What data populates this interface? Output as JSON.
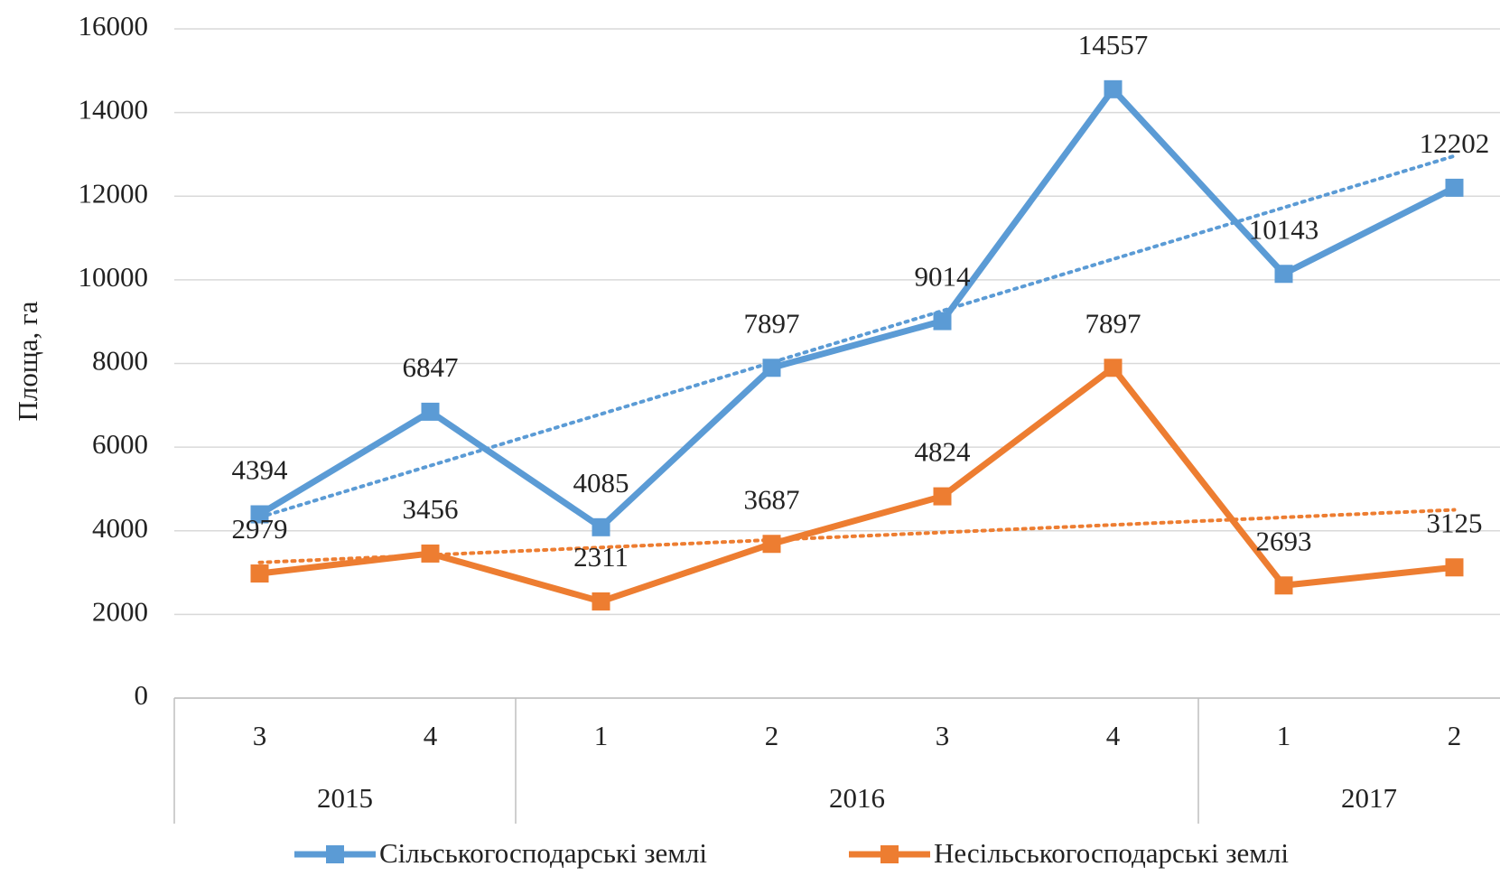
{
  "chart_data": {
    "type": "line",
    "y_label": "Площа, га",
    "categories": [
      "3",
      "4",
      "1",
      "2",
      "3",
      "4",
      "1",
      "2"
    ],
    "category_groups": [
      {
        "label": "2015",
        "count": 2
      },
      {
        "label": "2016",
        "count": 4
      },
      {
        "label": "2017",
        "count": 2
      }
    ],
    "series": [
      {
        "name": "Сільськогосподарські землі",
        "color": "#5b9bd5",
        "values": [
          4394,
          6847,
          4085,
          7897,
          9014,
          14557,
          10143,
          12202
        ],
        "trendline": "linear"
      },
      {
        "name": "Несільськогосподарські землі",
        "color": "#ed7d31",
        "values": [
          2979,
          3456,
          2311,
          3687,
          4824,
          7897,
          2693,
          3125
        ],
        "trendline": "linear"
      }
    ],
    "ylim": [
      0,
      16000
    ],
    "yticks": [
      0,
      2000,
      4000,
      6000,
      8000,
      10000,
      12000,
      14000,
      16000
    ],
    "grid": true,
    "legend": "bottom",
    "data_labels": true
  }
}
